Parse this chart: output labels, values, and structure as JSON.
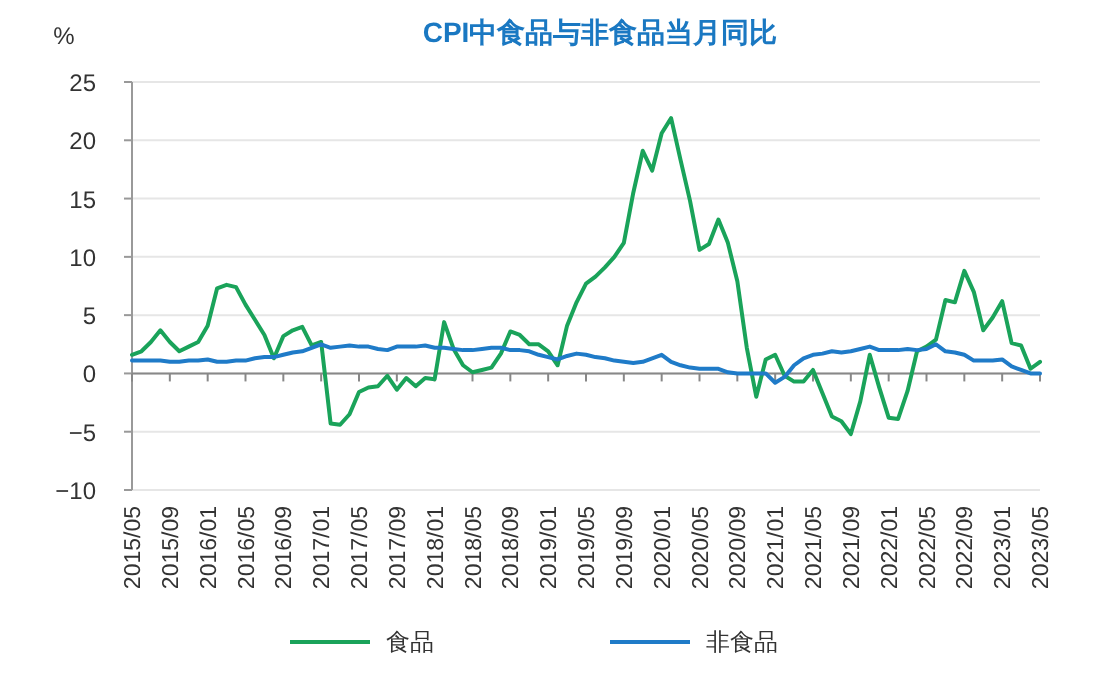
{
  "chart_data": {
    "type": "line",
    "title": "CPI中食品与非食品当月同比",
    "ylabel": "%",
    "x": [
      "2015-05",
      "2015-06",
      "2015-07",
      "2015-08",
      "2015-09",
      "2015-10",
      "2015-11",
      "2015-12",
      "2016-01",
      "2016-02",
      "2016-03",
      "2016-04",
      "2016-05",
      "2016-06",
      "2016-07",
      "2016-08",
      "2016-09",
      "2016-10",
      "2016-11",
      "2016-12",
      "2017-01",
      "2017-02",
      "2017-03",
      "2017-04",
      "2017-05",
      "2017-06",
      "2017-07",
      "2017-08",
      "2017-09",
      "2017-10",
      "2017-11",
      "2017-12",
      "2018-01",
      "2018-02",
      "2018-03",
      "2018-04",
      "2018-05",
      "2018-06",
      "2018-07",
      "2018-08",
      "2018-09",
      "2018-10",
      "2018-11",
      "2018-12",
      "2019-01",
      "2019-02",
      "2019-03",
      "2019-04",
      "2019-05",
      "2019-06",
      "2019-07",
      "2019-08",
      "2019-09",
      "2019-10",
      "2019-11",
      "2019-12",
      "2020-01",
      "2020-02",
      "2020-03",
      "2020-04",
      "2020-05",
      "2020-06",
      "2020-07",
      "2020-08",
      "2020-09",
      "2020-10",
      "2020-11",
      "2020-12",
      "2021-01",
      "2021-02",
      "2021-03",
      "2021-04",
      "2021-05",
      "2021-06",
      "2021-07",
      "2021-08",
      "2021-09",
      "2021-10",
      "2021-11",
      "2021-12",
      "2022-01",
      "2022-02",
      "2022-03",
      "2022-04",
      "2022-05",
      "2022-06",
      "2022-07",
      "2022-08",
      "2022-09",
      "2022-10",
      "2022-11",
      "2022-12",
      "2023-01",
      "2023-02",
      "2023-03",
      "2023-04",
      "2023-05"
    ],
    "series": [
      {
        "name": "食品",
        "color": "#1aa35a",
        "values": [
          1.6,
          1.9,
          2.7,
          3.7,
          2.7,
          1.9,
          2.3,
          2.7,
          4.1,
          7.3,
          7.6,
          7.4,
          5.9,
          4.6,
          3.3,
          1.3,
          3.2,
          3.7,
          4.0,
          2.4,
          2.7,
          -4.3,
          -4.4,
          -3.5,
          -1.6,
          -1.2,
          -1.1,
          -0.2,
          -1.4,
          -0.4,
          -1.1,
          -0.4,
          -0.5,
          4.4,
          2.1,
          0.7,
          0.1,
          0.3,
          0.5,
          1.7,
          3.6,
          3.3,
          2.5,
          2.5,
          1.9,
          0.7,
          4.1,
          6.1,
          7.7,
          8.3,
          9.1,
          10.0,
          11.2,
          15.5,
          19.1,
          17.4,
          20.6,
          21.9,
          18.3,
          14.8,
          10.6,
          11.1,
          13.2,
          11.2,
          7.9,
          2.2,
          -2.0,
          1.2,
          1.6,
          -0.2,
          -0.7,
          -0.7,
          0.3,
          -1.7,
          -3.7,
          -4.1,
          -5.2,
          -2.4,
          1.6,
          -1.2,
          -3.8,
          -3.9,
          -1.5,
          1.9,
          2.3,
          2.9,
          6.3,
          6.1,
          8.8,
          7.0,
          3.7,
          4.8,
          6.2,
          2.6,
          2.4,
          0.4,
          1.0
        ]
      },
      {
        "name": "非食品",
        "color": "#1f7bc8",
        "values": [
          1.1,
          1.1,
          1.1,
          1.1,
          1.0,
          1.0,
          1.1,
          1.1,
          1.2,
          1.0,
          1.0,
          1.1,
          1.1,
          1.3,
          1.4,
          1.4,
          1.6,
          1.8,
          1.9,
          2.2,
          2.5,
          2.2,
          2.3,
          2.4,
          2.3,
          2.3,
          2.1,
          2.0,
          2.3,
          2.3,
          2.3,
          2.4,
          2.2,
          2.2,
          2.1,
          2.0,
          2.0,
          2.1,
          2.2,
          2.2,
          2.0,
          2.0,
          1.9,
          1.6,
          1.4,
          1.2,
          1.5,
          1.7,
          1.6,
          1.4,
          1.3,
          1.1,
          1.0,
          0.9,
          1.0,
          1.3,
          1.6,
          1.0,
          0.7,
          0.5,
          0.4,
          0.4,
          0.4,
          0.1,
          0.0,
          0.0,
          0.0,
          0.0,
          -0.8,
          -0.3,
          0.7,
          1.3,
          1.6,
          1.7,
          1.9,
          1.8,
          1.9,
          2.1,
          2.3,
          2.0,
          2.0,
          2.0,
          2.1,
          2.0,
          2.1,
          2.5,
          1.9,
          1.8,
          1.6,
          1.1,
          1.1,
          1.1,
          1.2,
          0.6,
          0.3,
          0.0,
          0.0
        ]
      }
    ],
    "xlim": [
      "2015-05",
      "2023-05"
    ],
    "xticks": [
      {
        "value": "2015-05",
        "label": "2015/05"
      },
      {
        "value": "2015-09",
        "label": "2015/09"
      },
      {
        "value": "2016-01",
        "label": "2016/01"
      },
      {
        "value": "2016-05",
        "label": "2016/05"
      },
      {
        "value": "2016-09",
        "label": "2016/09"
      },
      {
        "value": "2017-01",
        "label": "2017/01"
      },
      {
        "value": "2017-05",
        "label": "2017/05"
      },
      {
        "value": "2017-09",
        "label": "2017/09"
      },
      {
        "value": "2018-01",
        "label": "2018/01"
      },
      {
        "value": "2018-05",
        "label": "2018/05"
      },
      {
        "value": "2018-09",
        "label": "2018/09"
      },
      {
        "value": "2019-01",
        "label": "2019/01"
      },
      {
        "value": "2019-05",
        "label": "2019/05"
      },
      {
        "value": "2019-09",
        "label": "2019/09"
      },
      {
        "value": "2020-01",
        "label": "2020/01"
      },
      {
        "value": "2020-05",
        "label": "2020/05"
      },
      {
        "value": "2020-09",
        "label": "2020/09"
      },
      {
        "value": "2021-01",
        "label": "2021/01"
      },
      {
        "value": "2021-05",
        "label": "2021/05"
      },
      {
        "value": "2021-09",
        "label": "2021/09"
      },
      {
        "value": "2022-01",
        "label": "2022/01"
      },
      {
        "value": "2022-05",
        "label": "2022/05"
      },
      {
        "value": "2022-09",
        "label": "2022/09"
      },
      {
        "value": "2023-01",
        "label": "2023/01"
      },
      {
        "value": "2023-05",
        "label": "2023/05"
      }
    ],
    "ylim": [
      -10,
      25
    ],
    "yticks": [
      -10,
      -5,
      0,
      5,
      10,
      15,
      20,
      25
    ],
    "grid": "y",
    "legend": "bottom",
    "marker": "none",
    "line_style": "solid"
  }
}
